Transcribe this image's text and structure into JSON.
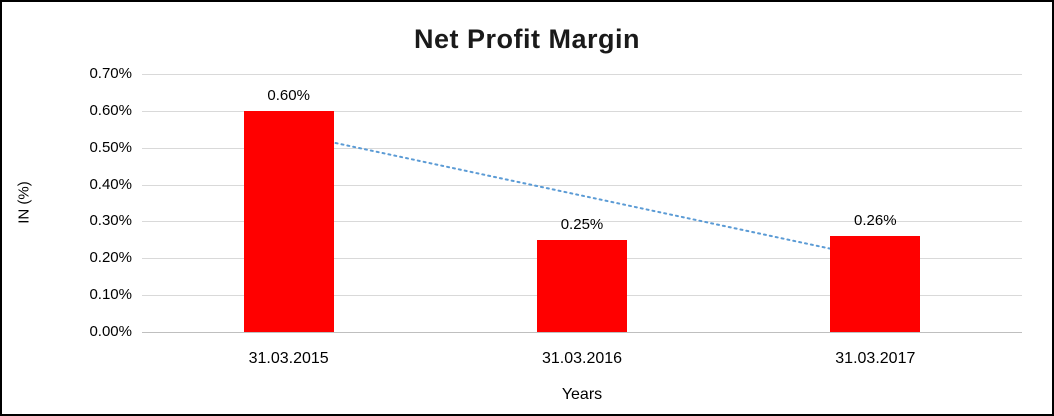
{
  "chart_data": {
    "type": "bar",
    "title": "Net Profit Margin",
    "xlabel": "Years",
    "ylabel": "IN (%)",
    "categories": [
      "31.03.2015",
      "31.03.2016",
      "31.03.2017"
    ],
    "values": [
      0.6,
      0.25,
      0.26
    ],
    "value_labels": [
      "0.60%",
      "0.25%",
      "0.26%"
    ],
    "y_ticks": [
      "0.00%",
      "0.10%",
      "0.20%",
      "0.30%",
      "0.40%",
      "0.50%",
      "0.60%",
      "0.70%"
    ],
    "ylim": [
      0,
      0.7
    ],
    "grid": true,
    "legend": "none",
    "bar_color": "#ff0000",
    "trendline": {
      "style": "dotted",
      "color": "#5b9bd5",
      "start_value": 0.54,
      "end_value": 0.2
    }
  }
}
